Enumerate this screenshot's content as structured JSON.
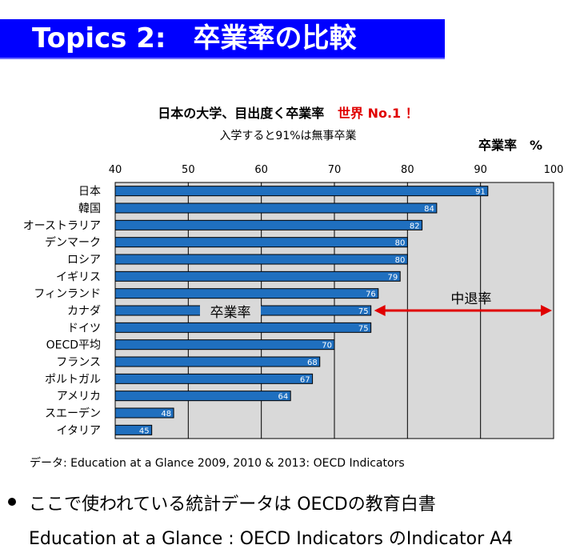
{
  "header": {
    "title": "Topics 2:　卒業率の比較"
  },
  "chart_data": {
    "type": "bar",
    "orientation": "horizontal",
    "title": "日本の大学、目出度く卒業率",
    "title_highlight": "世界 No.1 ！",
    "subtitle": "入学すると91%は無事卒業",
    "ylabel": "卒業率　%",
    "xlim": [
      40,
      100
    ],
    "xticks": [
      40,
      50,
      60,
      70,
      80,
      90,
      100
    ],
    "grid": true,
    "categories": [
      "日本",
      "韓国",
      "オーストラリア",
      "デンマーク",
      "ロシア",
      "イギリス",
      "フィンランド",
      "カナダ",
      "ドイツ",
      "OECD平均",
      "フランス",
      "ポルトガル",
      "アメリカ",
      "スエーデン",
      "イタリア"
    ],
    "values": [
      91,
      84,
      82,
      80,
      80,
      79,
      76,
      75,
      75,
      70,
      68,
      67,
      64,
      48,
      45
    ],
    "annotations": {
      "graduation_label": "卒業率",
      "dropout_label": "中退率"
    },
    "colors": {
      "bar": "#1f6fbf",
      "plot_bg": "#d9d9d9",
      "arrow": "#e00000",
      "title_accent": "#e00000"
    }
  },
  "footnote": "データ: Education at a Glance 2009, 2010 & 2013: OECD Indicators",
  "bullet": {
    "line1": "ここで使われている統計データは OECDの教育白書",
    "line2": "Education at a Glance : OECD Indicators のIndicator A4"
  },
  "colors": {
    "title_bar": "#0000ff",
    "title_text": "#ffffff"
  }
}
